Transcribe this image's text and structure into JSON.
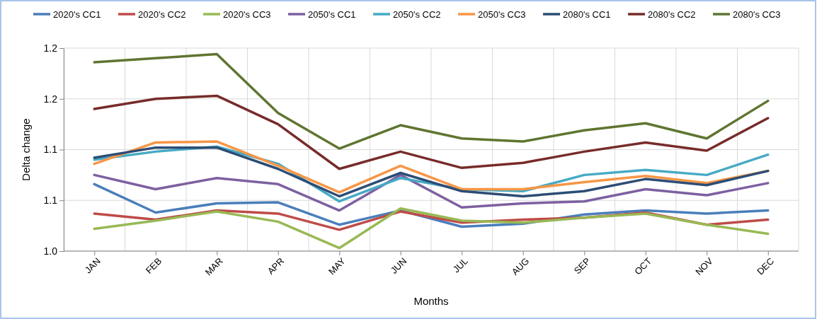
{
  "chart_data": {
    "type": "line",
    "xlabel": "Months",
    "ylabel": "Delta change",
    "categories": [
      "JAN",
      "FEB",
      "MAR",
      "APR",
      "MAY",
      "JUN",
      "JUL",
      "AUG",
      "SEP",
      "OCT",
      "NOV",
      "DEC"
    ],
    "ylim": [
      1.0,
      1.2
    ],
    "yticks": [
      {
        "value": 1.0,
        "label": "1.0"
      },
      {
        "value": 1.05,
        "label": "1.1"
      },
      1.1,
      {
        "value": 1.15,
        "label": "1.2"
      },
      1.2
    ],
    "grid": true,
    "legend": "top",
    "marker": "none",
    "line_style": "solid",
    "series": [
      {
        "name": "2020's CC1",
        "color": "#4a7ebb",
        "values": [
          1.066,
          1.038,
          1.047,
          1.048,
          1.026,
          1.04,
          1.024,
          1.027,
          1.036,
          1.04,
          1.037,
          1.04
        ]
      },
      {
        "name": "2020's CC2",
        "color": "#be4b48",
        "values": [
          1.037,
          1.031,
          1.04,
          1.037,
          1.021,
          1.039,
          1.028,
          1.031,
          1.033,
          1.038,
          1.026,
          1.031
        ]
      },
      {
        "name": "2020's CC3",
        "color": "#98b954",
        "values": [
          1.022,
          1.03,
          1.039,
          1.029,
          1.003,
          1.042,
          1.03,
          1.028,
          1.033,
          1.037,
          1.026,
          1.017
        ]
      },
      {
        "name": "2050's CC1",
        "color": "#7d60a0",
        "values": [
          1.075,
          1.061,
          1.072,
          1.066,
          1.04,
          1.075,
          1.043,
          1.047,
          1.049,
          1.061,
          1.055,
          1.067
        ]
      },
      {
        "name": "2050's CC2",
        "color": "#46aac5",
        "values": [
          1.09,
          1.098,
          1.103,
          1.086,
          1.049,
          1.072,
          1.061,
          1.059,
          1.075,
          1.08,
          1.075,
          1.095
        ]
      },
      {
        "name": "2050's CC3",
        "color": "#f79646",
        "values": [
          1.086,
          1.107,
          1.108,
          1.084,
          1.058,
          1.084,
          1.061,
          1.061,
          1.068,
          1.074,
          1.067,
          1.079
        ]
      },
      {
        "name": "2080's CC1",
        "color": "#2c4d75",
        "values": [
          1.092,
          1.102,
          1.102,
          1.081,
          1.054,
          1.077,
          1.059,
          1.054,
          1.059,
          1.071,
          1.065,
          1.079
        ]
      },
      {
        "name": "2080's CC2",
        "color": "#772c2a",
        "values": [
          1.14,
          1.15,
          1.153,
          1.125,
          1.081,
          1.098,
          1.082,
          1.087,
          1.098,
          1.107,
          1.099,
          1.131
        ]
      },
      {
        "name": "2080's CC3",
        "color": "#5f7530",
        "values": [
          1.186,
          1.19,
          1.194,
          1.136,
          1.101,
          1.124,
          1.111,
          1.108,
          1.119,
          1.126,
          1.111,
          1.148
        ]
      }
    ]
  }
}
